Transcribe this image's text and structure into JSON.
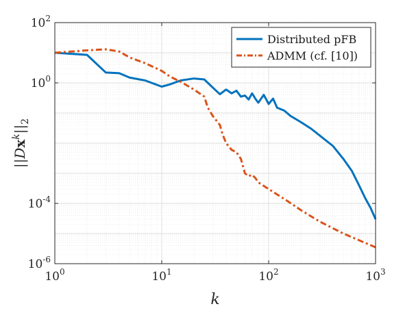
{
  "chart_data": {
    "type": "line",
    "xscale": "log",
    "yscale": "log",
    "xlim": [
      1,
      1000
    ],
    "ylim": [
      1e-06,
      100
    ],
    "grid": true,
    "minor_grid": true,
    "legend_position": "top-right",
    "xlabel": "k",
    "ylabel": "||Dx^k||_2",
    "x_ticks": [
      {
        "base": "10",
        "exp": "0"
      },
      {
        "base": "10",
        "exp": "1"
      },
      {
        "base": "10",
        "exp": "2"
      },
      {
        "base": "10",
        "exp": "3"
      }
    ],
    "y_ticks": [
      {
        "base": "10",
        "exp": "-6"
      },
      {
        "base": "10",
        "exp": "-4"
      },
      {
        "base": "",
        "exp": "",
        "text": "10^0"
      },
      {
        "base": "10",
        "exp": "2"
      }
    ],
    "series": [
      {
        "name": "Distributed pFB",
        "color": "#0072BD",
        "style": "solid",
        "points": [
          [
            1,
            10
          ],
          [
            2,
            8.5
          ],
          [
            3,
            2.2
          ],
          [
            4,
            2.1
          ],
          [
            5,
            1.5
          ],
          [
            7,
            1.2
          ],
          [
            10,
            0.75
          ],
          [
            12,
            0.9
          ],
          [
            15,
            1.2
          ],
          [
            20,
            1.4
          ],
          [
            25,
            1.3
          ],
          [
            30,
            0.7
          ],
          [
            35,
            0.42
          ],
          [
            40,
            0.6
          ],
          [
            45,
            0.45
          ],
          [
            50,
            0.55
          ],
          [
            55,
            0.35
          ],
          [
            60,
            0.38
          ],
          [
            65,
            0.28
          ],
          [
            70,
            0.45
          ],
          [
            75,
            0.3
          ],
          [
            80,
            0.22
          ],
          [
            90,
            0.4
          ],
          [
            100,
            0.2
          ],
          [
            110,
            0.3
          ],
          [
            120,
            0.15
          ],
          [
            140,
            0.12
          ],
          [
            160,
            0.08
          ],
          [
            200,
            0.05
          ],
          [
            250,
            0.03
          ],
          [
            300,
            0.018
          ],
          [
            400,
            0.008
          ],
          [
            500,
            0.003
          ],
          [
            600,
            0.0012
          ],
          [
            700,
            0.0004
          ],
          [
            800,
            0.00015
          ],
          [
            900,
            7e-05
          ],
          [
            1000,
            3e-05
          ]
        ]
      },
      {
        "name": "ADMM (cf. [10])",
        "color": "#D95319",
        "style": "dashdot",
        "points": [
          [
            1,
            10
          ],
          [
            2,
            12
          ],
          [
            3,
            13
          ],
          [
            4,
            11
          ],
          [
            5,
            7
          ],
          [
            7,
            4.5
          ],
          [
            10,
            2.5
          ],
          [
            12,
            1.6
          ],
          [
            15,
            1.1
          ],
          [
            20,
            0.6
          ],
          [
            25,
            0.35
          ],
          [
            27,
            0.15
          ],
          [
            30,
            0.08
          ],
          [
            35,
            0.04
          ],
          [
            37,
            0.02
          ],
          [
            40,
            0.01
          ],
          [
            45,
            0.006
          ],
          [
            50,
            0.005
          ],
          [
            55,
            0.003
          ],
          [
            60,
            0.001
          ],
          [
            65,
            0.0008
          ],
          [
            70,
            0.0009
          ],
          [
            75,
            0.0007
          ],
          [
            80,
            0.0005
          ],
          [
            100,
            0.0003
          ],
          [
            150,
            0.00012
          ],
          [
            200,
            6e-05
          ],
          [
            300,
            2.5e-05
          ],
          [
            500,
            1e-05
          ],
          [
            700,
            6e-06
          ],
          [
            1000,
            3.5e-06
          ]
        ]
      }
    ]
  }
}
